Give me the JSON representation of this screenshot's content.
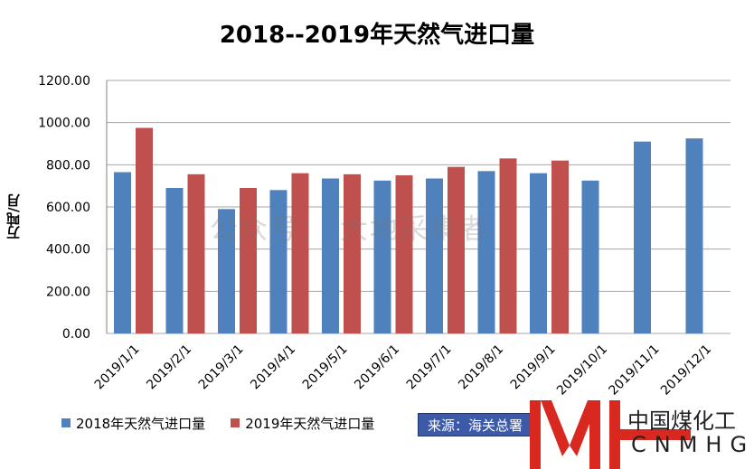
{
  "colors": {
    "series_2018": "#4f81bd",
    "series_2019": "#c0504d",
    "grid": "#a6a6a6",
    "source_bg": "#3d5aa8",
    "logo_red": "#d9281f"
  },
  "chart_data": {
    "type": "bar",
    "title": "2018--2019年天然气进口量",
    "ylabel": "万吨/月",
    "ylim": [
      0,
      1200
    ],
    "yticks": [
      "0.00",
      "200.00",
      "400.00",
      "600.00",
      "800.00",
      "1000.00",
      "1200.00"
    ],
    "grid": true,
    "legend_position": "bottom-left",
    "categories": [
      "2019/1/1",
      "2019/2/1",
      "2019/3/1",
      "2019/4/1",
      "2019/5/1",
      "2019/6/1",
      "2019/7/1",
      "2019/8/1",
      "2019/9/1",
      "2019/10/1",
      "2019/11/1",
      "2019/12/1"
    ],
    "series": [
      {
        "name": "2018年天然气进口量",
        "values": [
          765,
          690,
          590,
          680,
          735,
          725,
          735,
          770,
          760,
          725,
          910,
          925
        ]
      },
      {
        "name": "2019年天然气进口量",
        "values": [
          975,
          755,
          690,
          760,
          755,
          750,
          790,
          830,
          820,
          null,
          null,
          null
        ]
      }
    ]
  },
  "watermark": "公众号：  大地采集者",
  "source_label": "来源：海关总署",
  "logo": {
    "mark": "MH",
    "cn": "中国煤化工",
    "en": "CNMHG"
  }
}
